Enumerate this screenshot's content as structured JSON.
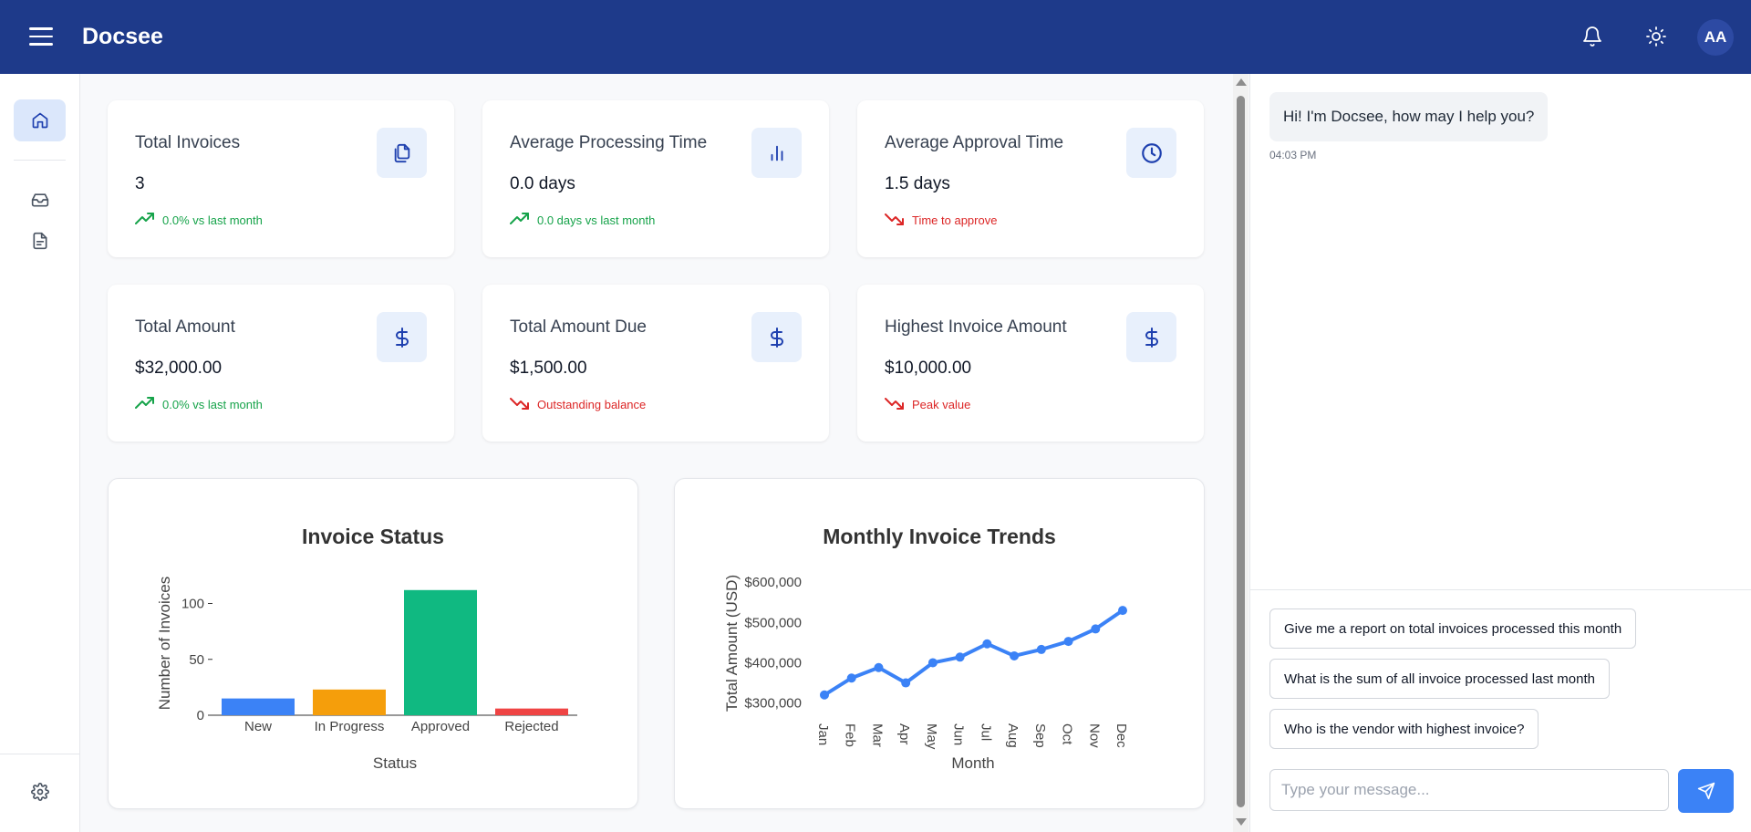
{
  "header": {
    "title": "Docsee",
    "avatar_initials": "AA"
  },
  "icons": {
    "menu": "menu-icon",
    "bell": "bell-icon",
    "theme": "sun-icon",
    "home": "home-icon",
    "inbox": "inbox-icon",
    "documents": "document-icon",
    "settings": "gear-icon"
  },
  "colors": {
    "header_bg": "#1e3a8a",
    "accent": "#3b82f6",
    "positive": "#16a34a",
    "negative": "#dc2626"
  },
  "cards": [
    {
      "title": "Total Invoices",
      "value": "3",
      "trend": "0.0% vs last month",
      "direction": "up",
      "icon": "files-icon"
    },
    {
      "title": "Average Processing Time",
      "value": "0.0 days",
      "trend": "0.0 days vs last month",
      "direction": "up",
      "icon": "bar-chart-icon"
    },
    {
      "title": "Average Approval Time",
      "value": "1.5 days",
      "trend": "Time to approve",
      "direction": "down",
      "icon": "clock-icon"
    },
    {
      "title": "Total Amount",
      "value": "$32,000.00",
      "trend": "0.0% vs last month",
      "direction": "up",
      "icon": "dollar-icon"
    },
    {
      "title": "Total Amount Due",
      "value": "$1,500.00",
      "trend": "Outstanding balance",
      "direction": "down",
      "icon": "dollar-icon"
    },
    {
      "title": "Highest Invoice Amount",
      "value": "$10,000.00",
      "trend": "Peak value",
      "direction": "down",
      "icon": "dollar-icon"
    }
  ],
  "chart_data": [
    {
      "type": "bar",
      "title": "Invoice Status",
      "xlabel": "Status",
      "ylabel": "Number of Invoices",
      "categories": [
        "New",
        "In Progress",
        "Approved",
        "Rejected"
      ],
      "values": [
        15,
        23,
        112,
        6
      ],
      "colors": [
        "#3b82f6",
        "#f59e0b",
        "#10b981",
        "#ef4444"
      ],
      "yticks": [
        0,
        50,
        100
      ],
      "ylim": [
        0,
        120
      ],
      "grid": false
    },
    {
      "type": "line",
      "title": "Monthly Invoice Trends",
      "xlabel": "Month",
      "ylabel": "Total Amount (USD)",
      "categories": [
        "Jan",
        "Feb",
        "Mar",
        "Apr",
        "May",
        "Jun",
        "Jul",
        "Aug",
        "Sep",
        "Oct",
        "Nov",
        "Dec"
      ],
      "values": [
        320000,
        362000,
        388000,
        350000,
        400000,
        414000,
        447000,
        417000,
        433000,
        453000,
        484000,
        530000
      ],
      "ytick_labels": [
        "$300,000",
        "$400,000",
        "$500,000",
        "$600,000"
      ],
      "yticks": [
        300000,
        400000,
        500000,
        600000
      ],
      "ylim": [
        290000,
        630000
      ],
      "color": "#3b82f6",
      "grid": false
    }
  ],
  "chat": {
    "greeting": "Hi! I'm Docsee, how may I help you?",
    "time": "04:03 PM",
    "suggestions": [
      "Give me a report on total invoices processed this month",
      "What is the sum of all invoice processed last month",
      "Who is the vendor with highest invoice?"
    ],
    "input_placeholder": "Type your message...",
    "send_icon": "send-icon"
  }
}
